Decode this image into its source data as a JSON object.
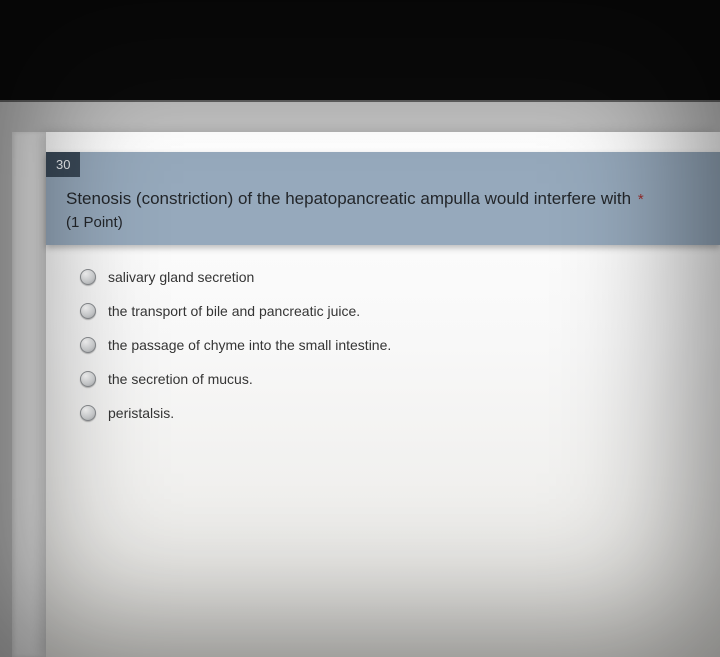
{
  "question": {
    "number": "30",
    "text": "Stenosis (constriction) of the hepatopancreatic ampulla would interfere with",
    "required_marker": "*",
    "points_label": "(1 Point)"
  },
  "options": [
    {
      "label": "salivary gland secretion"
    },
    {
      "label": "the transport of bile and pancreatic juice."
    },
    {
      "label": "the passage of chyme into the small intestine."
    },
    {
      "label": "the secretion of mucus."
    },
    {
      "label": "peristalsis."
    }
  ],
  "colors": {
    "header_bg": "#96a9bc",
    "number_bg": "#3b4a59",
    "page_bg": "#f4f3f0",
    "backdrop": "#0a0a0a"
  }
}
